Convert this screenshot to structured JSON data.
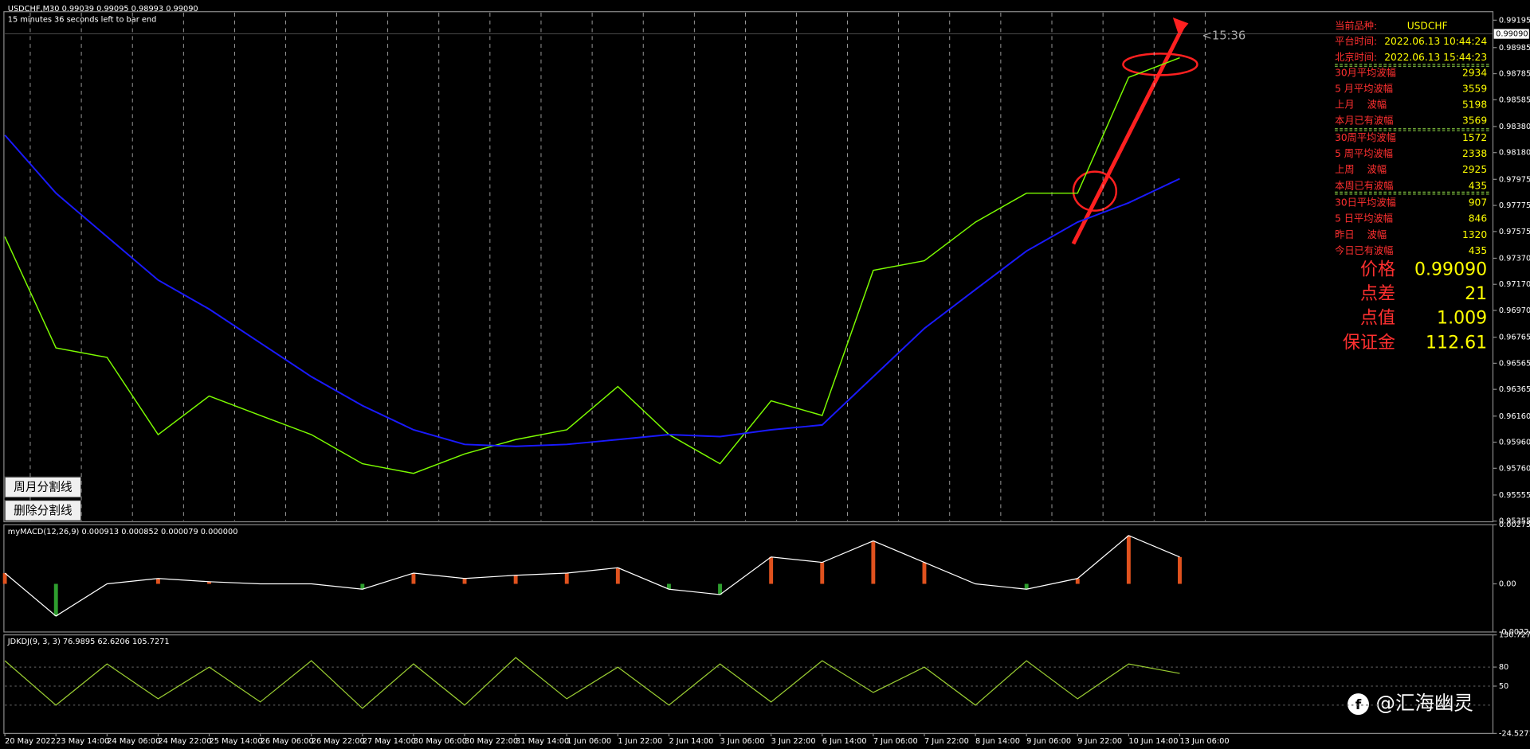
{
  "header": {
    "symbol_line": "USDCHF,M30  0.99039 0.99095 0.98993 0.99090",
    "countdown": "15 minutes 36 seconds left to bar end",
    "timer": "<15:36"
  },
  "chart_data": {
    "type": "line",
    "categories": [
      "20 May 2022",
      "23 May 14:00",
      "24 May 06:00",
      "24 May 22:00",
      "25 May 14:00",
      "26 May 06:00",
      "26 May 22:00",
      "27 May 14:00",
      "30 May 06:00",
      "30 May 22:00",
      "31 May 14:00",
      "1 Jun 06:00",
      "1 Jun 22:00",
      "2 Jun 14:00",
      "3 Jun 06:00",
      "3 Jun 22:00",
      "6 Jun 14:00",
      "7 Jun 06:00",
      "7 Jun 22:00",
      "8 Jun 14:00",
      "9 Jun 06:00",
      "9 Jun 22:00",
      "10 Jun 14:00",
      "13 Jun 06:00"
    ],
    "series": [
      {
        "color": "#7CFC00",
        "values": [
          0.97535,
          0.96683,
          0.9661,
          0.96018,
          0.96314,
          0.96165,
          0.96018,
          0.95795,
          0.95721,
          0.9587,
          0.9598,
          0.96055,
          0.96387,
          0.96018,
          0.95795,
          0.96277,
          0.96165,
          0.97277,
          0.97351,
          0.97647,
          0.97869,
          0.97869,
          0.98757,
          0.98907
        ]
      },
      {
        "color": "#1a1aff",
        "values": [
          0.98314,
          0.97869,
          0.97535,
          0.97203,
          0.9698,
          0.96721,
          0.96462,
          0.9624,
          0.96055,
          0.95943,
          0.95928,
          0.95943,
          0.9598,
          0.96018,
          0.96003,
          0.96055,
          0.96092,
          0.96462,
          0.96832,
          0.9713,
          0.97425,
          0.97647,
          0.97795,
          0.9798
        ]
      }
    ],
    "ylim": [
      0.9535,
      0.9926
    ],
    "yticks": [
      0.99195,
      0.98985,
      0.98785,
      0.98585,
      {
        "value": 0.9838,
        "label": "0.98380"
      },
      {
        "value": 0.9818,
        "label": "0.98180"
      },
      0.97975,
      0.97775,
      0.97575,
      {
        "value": 0.9737,
        "label": "0.97370"
      },
      {
        "value": 0.9717,
        "label": "0.97170"
      },
      {
        "value": 0.9697,
        "label": "0.96970"
      },
      0.96765,
      0.96565,
      0.96365,
      {
        "value": 0.9616,
        "label": "0.96160"
      },
      {
        "value": 0.9596,
        "label": "0.95960"
      },
      {
        "value": 0.9576,
        "label": "0.95760"
      },
      0.95555,
      0.95355
    ],
    "price_tag": {
      "value": 0.9909,
      "label": "0.99090"
    }
  },
  "macd": {
    "label": "myMACD(12,26,9) 0.000913 0.000852 0.000079 0.000000",
    "color": "#ffffff",
    "values": [
      0.0005,
      -0.0015,
      0,
      0.00025,
      0.0001,
      0,
      0,
      -0.00025,
      0.0005,
      0.00025,
      0.0004,
      0.0005,
      0.00075,
      -0.00025,
      -0.0005,
      0.00125,
      0.001,
      0.002,
      0.001,
      0,
      -0.00025,
      0.00025,
      0.00225,
      0.00125
    ],
    "ylim": [
      -0.002243,
      0.002757
    ],
    "yticks": [
      0.002757,
      {
        "value": 0,
        "label": "0.00"
      },
      -0.002243
    ]
  },
  "kdj": {
    "label": "JDKDJ(9, 3, 3) 76.9895 62.6206 105.7271",
    "color": "#9acd32",
    "values": [
      90,
      20,
      85,
      30,
      80,
      25,
      90,
      15,
      85,
      20,
      95,
      30,
      80,
      20,
      85,
      25,
      90,
      40,
      80,
      20,
      90,
      30,
      85,
      70
    ],
    "ylim": [
      -24.5271,
      130.7277
    ],
    "yticks": [
      130.7277,
      80,
      50,
      -24.5271
    ]
  },
  "panel": {
    "symbol_label": "当前品种:",
    "symbol": "USDCHF",
    "platform_label": "平台时间:",
    "platform_time": "2022.06.13 10:44:24",
    "beijing_label": "北京时间:",
    "beijing_time": "2022.06.13 15:44:23",
    "rows": [
      [
        "30月平均波幅",
        "2934"
      ],
      [
        "5 月平均波幅",
        "3559"
      ],
      [
        "上月　 波幅",
        "5198"
      ],
      [
        "本月已有波幅",
        "3569"
      ],
      [
        "30周平均波幅",
        "1572"
      ],
      [
        "5 周平均波幅",
        "2338"
      ],
      [
        "上周　 波幅",
        "2925"
      ],
      [
        "本周已有波幅",
        "435"
      ],
      [
        "30日平均波幅",
        "907"
      ],
      [
        "5 日平均波幅",
        "846"
      ],
      [
        "昨日　 波幅",
        "1320"
      ],
      [
        "今日已有波幅",
        "435"
      ]
    ],
    "big": [
      [
        "价格",
        "0.99090"
      ],
      [
        "点差",
        "21"
      ],
      [
        "点值",
        "1.009"
      ],
      [
        "保证金",
        "112.61"
      ]
    ]
  },
  "buttons": [
    "周月分割线",
    "删除分割线"
  ],
  "watermark": "@汇海幽灵"
}
